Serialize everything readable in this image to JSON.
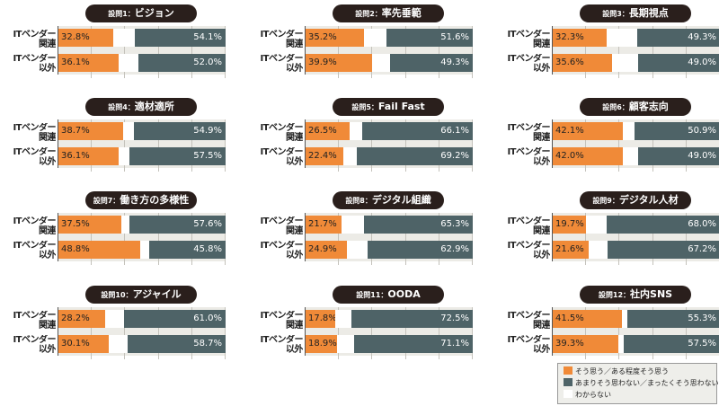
{
  "chart_data": {
    "type": "bar",
    "stacked": true,
    "orientation": "horizontal",
    "xlim": [
      0,
      100
    ],
    "grid": true,
    "legend_position": "bottom-right",
    "colors": {
      "agree": "#f08a38",
      "disagree": "#4e6367",
      "unknown": "#ffffff"
    },
    "legend": [
      "そう思う／ある程度そう思う",
      "あまりそう思わない／まったくそう思わない",
      "わからない"
    ],
    "categories": [
      "ITベンダー関連",
      "ITベンダー以外"
    ],
    "category_labels": [
      [
        "ITベンダー",
        "関連"
      ],
      [
        "ITベンダー",
        "以外"
      ]
    ],
    "panels": [
      {
        "prefix": "設問1：",
        "title": "ビジョン",
        "agree": [
          32.8,
          36.1
        ],
        "disagree": [
          54.1,
          52.0
        ]
      },
      {
        "prefix": "設問2：",
        "title": "率先垂範",
        "agree": [
          35.2,
          39.9
        ],
        "disagree": [
          51.6,
          49.3
        ]
      },
      {
        "prefix": "設問3：",
        "title": "長期視点",
        "agree": [
          32.3,
          35.6
        ],
        "disagree": [
          49.3,
          49.0
        ]
      },
      {
        "prefix": "設問4：",
        "title": "適材適所",
        "agree": [
          38.7,
          36.1
        ],
        "disagree": [
          54.9,
          57.5
        ]
      },
      {
        "prefix": "設問5：",
        "title": "Fail Fast",
        "agree": [
          26.5,
          22.4
        ],
        "disagree": [
          66.1,
          69.2
        ]
      },
      {
        "prefix": "設問6：",
        "title": "顧客志向",
        "agree": [
          42.1,
          42.0
        ],
        "disagree": [
          50.9,
          49.0
        ]
      },
      {
        "prefix": "設問7：",
        "title": "働き方の多様性",
        "agree": [
          37.5,
          48.8
        ],
        "disagree": [
          57.6,
          45.8
        ]
      },
      {
        "prefix": "設問8：",
        "title": "デジタル組織",
        "agree": [
          21.7,
          24.9
        ],
        "disagree": [
          65.3,
          62.9
        ]
      },
      {
        "prefix": "設問9：",
        "title": "デジタル人材",
        "agree": [
          19.7,
          21.6
        ],
        "disagree": [
          68.0,
          67.2
        ]
      },
      {
        "prefix": "設問10：",
        "title": "アジャイル",
        "agree": [
          28.2,
          30.1
        ],
        "disagree": [
          61.0,
          58.7
        ]
      },
      {
        "prefix": "設問11：",
        "title": "OODA",
        "agree": [
          17.8,
          18.9
        ],
        "disagree": [
          72.5,
          71.1
        ]
      },
      {
        "prefix": "設問12：",
        "title": "社内SNS",
        "agree": [
          41.5,
          39.3
        ],
        "disagree": [
          55.3,
          57.5
        ]
      }
    ]
  }
}
